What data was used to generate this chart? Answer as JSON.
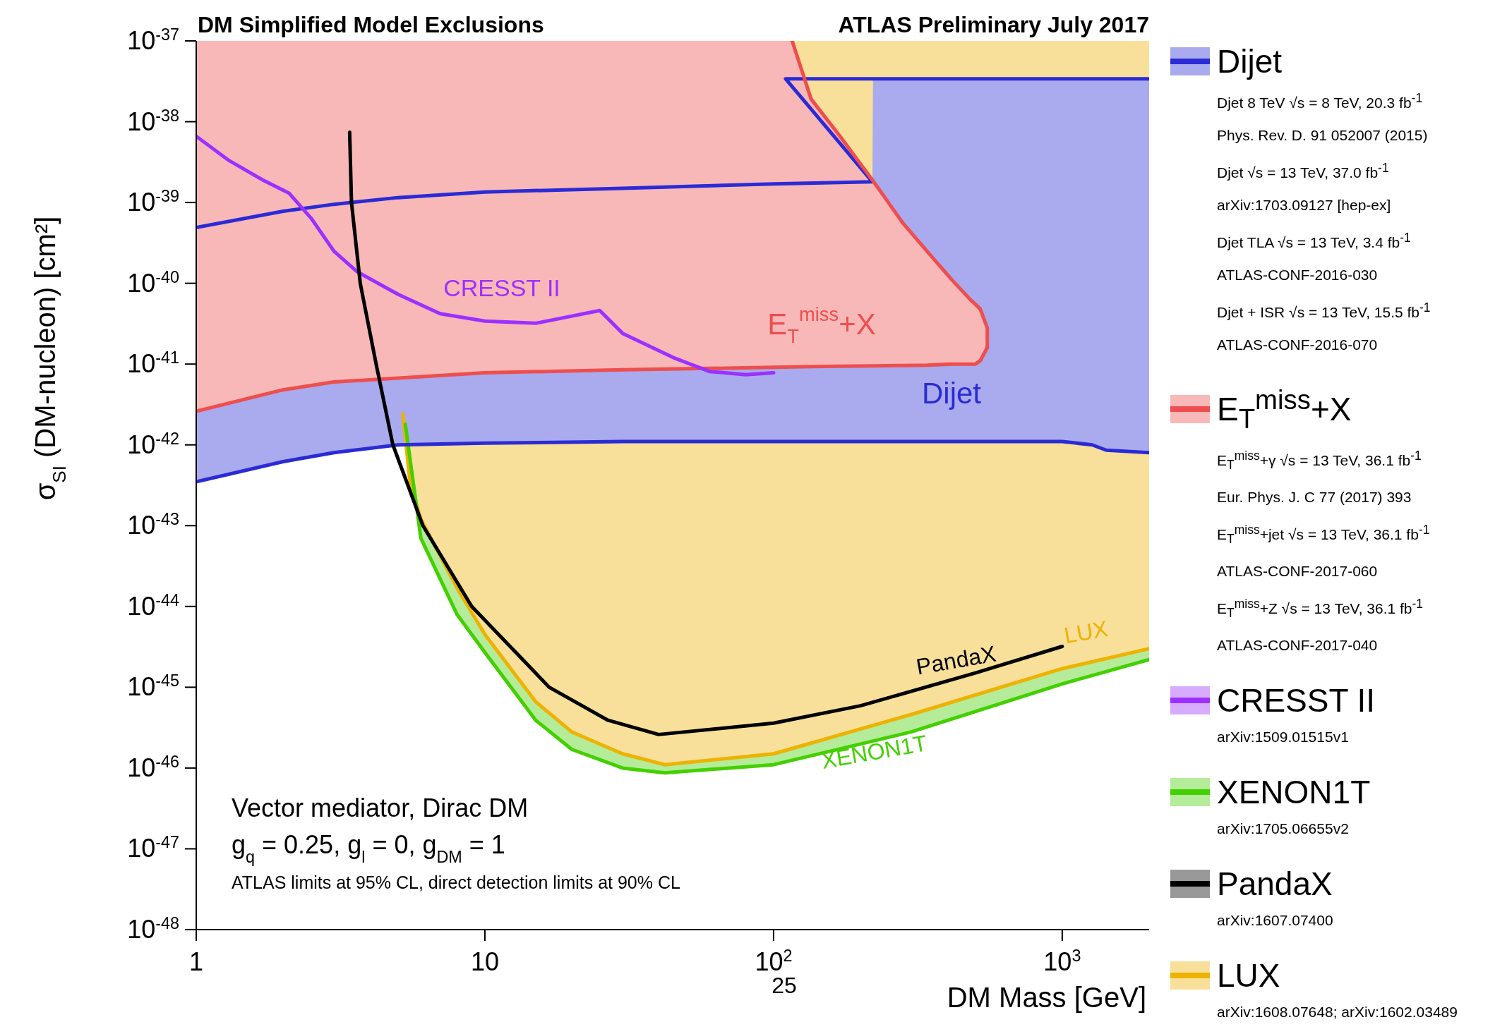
{
  "chart_data": {
    "type": "line",
    "title": "DM Simplified Model Exclusions",
    "subtitle": "ATLAS Preliminary July 2017",
    "xlabel": "DM Mass [GeV]",
    "ylabel": "σ$_{SI}$ (DM-nucleon) [cm²]",
    "log": "xy",
    "legend": "right",
    "xlim": [
      1,
      2000
    ],
    "xticks": [
      1,
      10,
      {
        "value": 100,
        "label": "10$^{2}$"
      },
      {
        "value": 1000,
        "label": "10$^{3}$"
      }
    ],
    "ylim": [
      1e-48,
      1e-37
    ],
    "yticks": [
      {
        "value": 1e-48,
        "label": "10$^{-48}$"
      },
      {
        "value": 1e-47,
        "label": "10$^{-47}$"
      },
      {
        "value": 1e-46,
        "label": "10$^{-46}$"
      },
      {
        "value": 1e-45,
        "label": "10$^{-45}$"
      },
      {
        "value": 1e-44,
        "label": "10$^{-44}$"
      },
      {
        "value": 1e-43,
        "label": "10$^{-43}$"
      },
      {
        "value": 1e-42,
        "label": "10$^{-42}$"
      },
      {
        "value": 1e-41,
        "label": "10$^{-41}$"
      },
      {
        "value": 1e-40,
        "label": "10$^{-40}$"
      },
      {
        "value": 1e-39,
        "label": "10$^{-39}$"
      },
      {
        "value": 1e-38,
        "label": "10$^{-38}$"
      },
      {
        "value": 1e-37,
        "label": "10$^{-37}$"
      }
    ],
    "series": [
      {
        "name": "LUX",
        "color": "#eeb203",
        "x": [
          5.2,
          5.5,
          6,
          8,
          10,
          15,
          20,
          30,
          42,
          100,
          300,
          1000,
          2000
        ],
        "values": [
          2.4e-42,
          3.5e-43,
          1.2e-43,
          1.7e-44,
          4.5e-45,
          6.6e-46,
          2.8e-46,
          1.5e-46,
          1.1e-46,
          1.5e-46,
          4.6e-46,
          1.7e-45,
          3e-45
        ],
        "lower": [
          2.4e-42,
          3.5e-43,
          1.2e-43,
          1.7e-44,
          4.5e-45,
          6.6e-46,
          2.8e-46,
          1.5e-46,
          1.1e-46,
          1.5e-46,
          4.6e-46,
          1.7e-45,
          3e-45
        ],
        "upper": [
          1e-37,
          1e-37,
          1e-37,
          1e-37,
          1e-37,
          1e-37,
          1e-37,
          1e-37,
          1e-37,
          1e-37,
          1e-37,
          1e-37,
          1e-37
        ]
      },
      {
        "name": "XENON1T",
        "color": "#44d000",
        "x": [
          5.3,
          6,
          8,
          10,
          15,
          20,
          30,
          42,
          100,
          300,
          1000,
          2000
        ],
        "values": [
          1.8e-42,
          7e-44,
          8e-45,
          2.7e-45,
          3.9e-46,
          1.7e-46,
          1e-46,
          8.7e-47,
          1.1e-46,
          2.8e-46,
          1.1e-45,
          2.2e-45
        ],
        "lower": [
          1.8e-42,
          7e-44,
          8e-45,
          2.7e-45,
          3.9e-46,
          1.7e-46,
          1e-46,
          8.7e-47,
          1.1e-46,
          2.8e-46,
          1.1e-45,
          2.2e-45
        ],
        "upper": [
          1.8e-42,
          1.2e-43,
          1.7e-44,
          4.5e-45,
          6.6e-46,
          2.8e-46,
          1.5e-46,
          1.1e-46,
          1.5e-46,
          4.6e-46,
          1.7e-45,
          3e-45
        ]
      },
      {
        "name": "Dijet",
        "color": "#2b2bd5",
        "x": [
          1,
          2,
          3,
          5,
          10,
          30,
          100,
          220,
          221,
          1000,
          1270,
          1420,
          2000
        ],
        "values": [
          3.5e-43,
          6.2e-43,
          8e-43,
          1e-42,
          1.05e-42,
          1.1e-42,
          1.1e-42,
          1.1e-42,
          1.1e-42,
          1.1e-42,
          1e-42,
          8.6e-43,
          8e-43
        ],
        "lower": [
          3.5e-43,
          6.2e-43,
          8e-43,
          1e-42,
          1.05e-42,
          1.1e-42,
          1.1e-42,
          1.1e-42,
          1.1e-42,
          1.1e-42,
          1e-42,
          8.6e-43,
          8e-43
        ],
        "upper": [
          4.9e-40,
          7.8e-40,
          9.5e-40,
          1.15e-39,
          1.35e-39,
          1.5e-39,
          1.7e-39,
          1.8e-39,
          3.4e-38,
          3.4e-38,
          3.4e-38,
          3.4e-38,
          3.4e-38
        ]
      },
      {
        "name": "E$_{T}$$^{miss}$+X",
        "color": "#ee4e4e",
        "x": [
          1,
          2,
          3,
          10,
          30,
          100,
          116,
          135,
          170,
          225,
          280,
          340,
          415,
          480,
          500,
          520,
          550
        ],
        "values": [
          2.6e-42,
          4.8e-42,
          6e-42,
          7.8e-42,
          8.5e-42,
          9.1e-42,
          9.2e-42,
          9.3e-42,
          9.4e-42,
          9.5e-42,
          9.6e-42,
          9.7e-42,
          1e-41,
          1e-41,
          1e-41,
          1.1e-41,
          1.6e-41
        ],
        "lower": [
          2.6e-42,
          4.8e-42,
          6e-42,
          7.8e-42,
          8.5e-42,
          9.1e-42,
          9.2e-42,
          9.3e-42,
          9.4e-42,
          9.5e-42,
          9.6e-42,
          9.7e-42,
          1e-41,
          1e-41,
          1e-41,
          1.1e-41,
          1.6e-41
        ],
        "upper": [
          1e-37,
          1e-37,
          1e-37,
          1e-37,
          1e-37,
          1e-37,
          1e-37,
          1.9e-38,
          6.6e-39,
          1.7e-39,
          5.6e-40,
          2.5e-40,
          1.1e-40,
          6.3e-41,
          5.5e-41,
          4.8e-41,
          2.8e-41
        ]
      },
      {
        "color": "#2b2bd5",
        "x": [
          1,
          2,
          3,
          5,
          10,
          30,
          100,
          220,
          110,
          2000
        ],
        "values": [
          4.9e-40,
          7.8e-40,
          9.5e-40,
          1.15e-39,
          1.35e-39,
          1.5e-39,
          1.7e-39,
          1.8e-39,
          3.4e-38,
          3.4e-38
        ]
      },
      {
        "color": "#ee4e4e",
        "x": [
          116,
          135,
          170,
          225,
          280,
          340,
          415,
          480,
          500,
          520,
          550,
          550
        ],
        "values": [
          1e-37,
          1.9e-38,
          6.6e-39,
          1.7e-39,
          5.6e-40,
          2.5e-40,
          1.1e-40,
          6.3e-41,
          5.5e-41,
          4.8e-41,
          2.8e-41,
          1.6e-41
        ]
      },
      {
        "name": "CRESST II",
        "color": "#9b30ff",
        "x": [
          1,
          1.3,
          1.7,
          2.1,
          2.5,
          3,
          3.6,
          5,
          7,
          10,
          15,
          25,
          30,
          45,
          60,
          80,
          100
        ],
        "values": [
          6.6e-39,
          3.3e-39,
          1.9e-39,
          1.3e-39,
          6.4e-40,
          2.5e-40,
          1.4e-40,
          7.3e-41,
          4.2e-41,
          3.4e-41,
          3.2e-41,
          4.6e-41,
          2.4e-41,
          1.2e-41,
          8.1e-42,
          7.4e-42,
          7.8e-42
        ]
      },
      {
        "name": "PandaX",
        "color": "#000000",
        "x": [
          3.4,
          3.45,
          3.7,
          4.2,
          4.8,
          6.1,
          9,
          16.7,
          26.7,
          40,
          100,
          200,
          500,
          1000
        ],
        "values": [
          7.4e-39,
          1e-39,
          1e-40,
          1e-41,
          1e-42,
          1e-43,
          1e-44,
          1e-45,
          3.9e-46,
          2.6e-46,
          3.6e-46,
          5.9e-46,
          1.5e-45,
          3.2e-45
        ]
      }
    ],
    "annotations": [
      "CRESST II",
      "E$_{T}$$^{miss}$+X",
      "Dijet",
      "PandaX",
      "LUX",
      "XENON1T",
      "Djet 8 TeV √s = 8 TeV, 20.3 fb$^{-1}$",
      "Phys. Rev. D. 91 052007 (2015)",
      "Djet √s = 13 TeV, 37.0 fb$^{-1}$",
      "arXiv:1703.09127 [hep-ex]",
      "Djet TLA √s = 13 TeV, 3.4 fb$^{-1}$",
      "ATLAS-CONF-2016-030",
      "Djet + ISR √s = 13 TeV, 15.5 fb$^{-1}$",
      "ATLAS-CONF-2016-070",
      "E$_{T}$$^{miss}$+γ √s = 13 TeV, 36.1 fb$^{-1}$",
      "Eur. Phys. J. C 77 (2017) 393",
      "E$_{T}$$^{miss}$+jet √s = 13 TeV, 36.1 fb$^{-1}$",
      "ATLAS-CONF-2017-060",
      "E$_{T}$$^{miss}$+Z √s = 13 TeV, 36.1 fb$^{-1}$",
      "ATLAS-CONF-2017-040",
      "arXiv:1509.01515v1",
      "arXiv:1705.06655v2",
      "arXiv:1607.07400",
      "arXiv:1608.07648; arXiv:1602.03489",
      "Vector mediator, Dirac DM",
      "g$_{q}$ = 0.25, g$_{l}$ = 0, g$_{DM}$ = 1",
      "ATLAS limits at 95% CL, direct detection limits at 90% CL",
      "25"
    ]
  }
}
